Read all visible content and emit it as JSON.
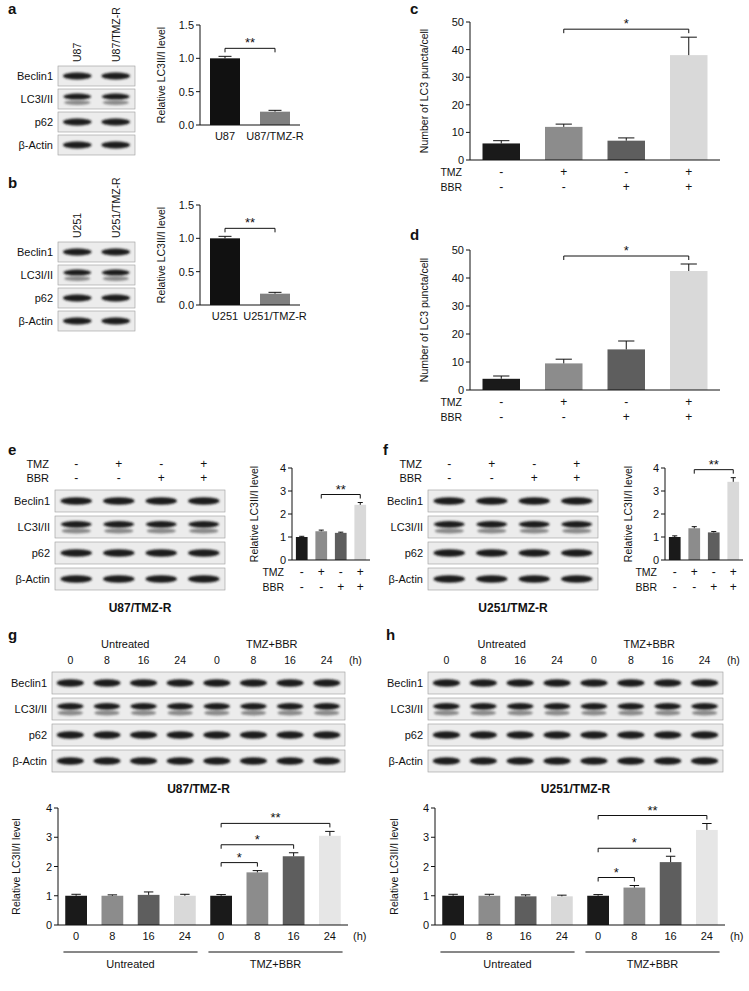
{
  "panel_labels": [
    "a",
    "b",
    "c",
    "d",
    "e",
    "f",
    "g",
    "h"
  ],
  "blots": [
    {
      "lanes": [
        "U87",
        "U87/TMZ-R"
      ],
      "rows": [
        "Beclin1",
        "LC3I/II",
        "p62",
        "β-Actin"
      ]
    },
    {
      "lanes": [
        "U251",
        "U251/TMZ-R"
      ],
      "rows": [
        "Beclin1",
        "LC3I/II",
        "p62",
        "β-Actin"
      ]
    },
    {
      "conditions": [
        {
          "name": "TMZ",
          "values": [
            "-",
            "+",
            "-",
            "+"
          ]
        },
        {
          "name": "BBR",
          "values": [
            "-",
            "-",
            "+",
            "+"
          ]
        }
      ],
      "rows": [
        "Beclin1",
        "LC3I/II",
        "p62",
        "β-Actin"
      ],
      "caption": "U87/TMZ-R"
    },
    {
      "conditions": [
        {
          "name": "TMZ",
          "values": [
            "-",
            "+",
            "-",
            "+"
          ]
        },
        {
          "name": "BBR",
          "values": [
            "-",
            "-",
            "+",
            "+"
          ]
        }
      ],
      "rows": [
        "Beclin1",
        "LC3I/II",
        "p62",
        "β-Actin"
      ],
      "caption": "U251/TMZ-R"
    },
    {
      "groups": [
        {
          "label": "Untreated",
          "times": [
            "0",
            "8",
            "16",
            "24"
          ]
        },
        {
          "label": "TMZ+BBR",
          "times": [
            "0",
            "8",
            "16",
            "24"
          ]
        }
      ],
      "time_unit": "(h)",
      "rows": [
        "Beclin1",
        "LC3I/II",
        "p62",
        "β-Actin"
      ],
      "caption": "U87/TMZ-R"
    },
    {
      "groups": [
        {
          "label": "Untreated",
          "times": [
            "0",
            "8",
            "16",
            "24"
          ]
        },
        {
          "label": "TMZ+BBR",
          "times": [
            "0",
            "8",
            "16",
            "24"
          ]
        }
      ],
      "time_unit": "(h)",
      "rows": [
        "Beclin1",
        "LC3I/II",
        "p62",
        "β-Actin"
      ],
      "caption": "U251/TMZ-R"
    }
  ],
  "chart_data": [
    {
      "type": "bar",
      "y_label": "Relative LC3II/I level",
      "categories": [
        "U87",
        "U87/TMZ-R"
      ],
      "values": [
        1.0,
        0.2
      ],
      "errors": [
        0.03,
        0.02
      ],
      "colors": [
        "#111111",
        "#808080"
      ],
      "ylim": [
        0,
        1.5
      ],
      "yticks": [
        {
          "value": 0,
          "label": "0.0"
        },
        {
          "value": 0.5,
          "label": "0.5"
        },
        {
          "value": 1,
          "label": "1.0"
        },
        {
          "value": 1.5,
          "label": "1.5"
        }
      ],
      "annotations": [
        {
          "text": "**",
          "from": 0,
          "to": 1
        }
      ]
    },
    {
      "type": "bar",
      "y_label": "Relative LC3II/I level",
      "categories": [
        "U251",
        "U251/TMZ-R"
      ],
      "values": [
        1.0,
        0.17
      ],
      "errors": [
        0.03,
        0.02
      ],
      "colors": [
        "#111111",
        "#808080"
      ],
      "ylim": [
        0,
        1.5
      ],
      "yticks": [
        {
          "value": 0,
          "label": "0.0"
        },
        {
          "value": 0.5,
          "label": "0.5"
        },
        {
          "value": 1,
          "label": "1.0"
        },
        {
          "value": 1.5,
          "label": "1.5"
        }
      ],
      "annotations": [
        {
          "text": "**",
          "from": 0,
          "to": 1
        }
      ]
    },
    {
      "type": "bar",
      "y_label": "Number of LC3 puncta/cell",
      "categories": [
        null,
        null,
        null,
        null
      ],
      "conditions": [
        {
          "name": "TMZ",
          "values": [
            "-",
            "+",
            "-",
            "+"
          ]
        },
        {
          "name": "BBR",
          "values": [
            "-",
            "-",
            "+",
            "+"
          ]
        }
      ],
      "values": [
        6,
        12,
        7,
        38
      ],
      "errors": [
        1,
        1,
        1,
        6.5
      ],
      "colors": [
        "#1a1a1a",
        "#8c8c8c",
        "#5e5e5e",
        "#d9d9d9"
      ],
      "ylim": [
        0,
        50
      ],
      "yticks": [
        0,
        10,
        20,
        30,
        40,
        50
      ],
      "annotations": [
        {
          "text": "*",
          "from": 1,
          "to": 3
        }
      ]
    },
    {
      "type": "bar",
      "y_label": "Number of LC3 puncta/cell",
      "categories": [
        null,
        null,
        null,
        null
      ],
      "conditions": [
        {
          "name": "TMZ",
          "values": [
            "-",
            "+",
            "-",
            "+"
          ]
        },
        {
          "name": "BBR",
          "values": [
            "-",
            "-",
            "+",
            "+"
          ]
        }
      ],
      "values": [
        4,
        9.5,
        14.5,
        42.5
      ],
      "errors": [
        1,
        1.5,
        3,
        2.5
      ],
      "colors": [
        "#1a1a1a",
        "#8c8c8c",
        "#5e5e5e",
        "#d9d9d9"
      ],
      "ylim": [
        0,
        50
      ],
      "yticks": [
        0,
        10,
        20,
        30,
        40,
        50
      ],
      "annotations": [
        {
          "text": "*",
          "from": 1,
          "to": 3
        }
      ]
    },
    {
      "type": "bar",
      "y_label": "Relative LC3II/I level",
      "categories": [
        null,
        null,
        null,
        null
      ],
      "conditions": [
        {
          "name": "TMZ",
          "values": [
            "-",
            "+",
            "-",
            "+"
          ]
        },
        {
          "name": "BBR",
          "values": [
            "-",
            "-",
            "+",
            "+"
          ]
        }
      ],
      "values": [
        1.0,
        1.25,
        1.18,
        2.4
      ],
      "errors": [
        0.03,
        0.05,
        0.03,
        0.1
      ],
      "colors": [
        "#1a1a1a",
        "#8c8c8c",
        "#5e5e5e",
        "#d9d9d9"
      ],
      "ylim": [
        0,
        4
      ],
      "yticks": [
        0,
        1,
        2,
        3,
        4
      ],
      "annotations": [
        {
          "text": "**",
          "from": 1,
          "to": 3
        }
      ]
    },
    {
      "type": "bar",
      "y_label": "Relative LC3II/I level",
      "categories": [
        null,
        null,
        null,
        null
      ],
      "conditions": [
        {
          "name": "TMZ",
          "values": [
            "-",
            "+",
            "-",
            "+"
          ]
        },
        {
          "name": "BBR",
          "values": [
            "-",
            "-",
            "+",
            "+"
          ]
        }
      ],
      "values": [
        1.0,
        1.38,
        1.2,
        3.4
      ],
      "errors": [
        0.05,
        0.07,
        0.04,
        0.18
      ],
      "colors": [
        "#1a1a1a",
        "#8c8c8c",
        "#5e5e5e",
        "#d9d9d9"
      ],
      "ylim": [
        0,
        4
      ],
      "yticks": [
        0,
        1,
        2,
        3,
        4
      ],
      "annotations": [
        {
          "text": "**",
          "from": 1,
          "to": 3
        }
      ]
    },
    {
      "type": "bar",
      "y_label": "Relative LC3II/I level",
      "x_label": "(h)",
      "categories": [
        "0",
        "8",
        "16",
        "24",
        "0",
        "8",
        "16",
        "24"
      ],
      "groups": [
        {
          "label": "Untreated",
          "from": 0,
          "to": 3
        },
        {
          "label": "TMZ+BBR",
          "from": 4,
          "to": 7
        }
      ],
      "values": [
        1.0,
        1.0,
        1.03,
        1.0,
        1.0,
        1.8,
        2.35,
        3.05
      ],
      "errors": [
        0.05,
        0.03,
        0.1,
        0.05,
        0.04,
        0.06,
        0.12,
        0.15
      ],
      "colors": [
        "#1a1a1a",
        "#8c8c8c",
        "#5e5e5e",
        "#d9d9d9",
        "#1a1a1a",
        "#8c8c8c",
        "#5e5e5e",
        "#e6e6e6"
      ],
      "ylim": [
        0,
        4
      ],
      "yticks": [
        0,
        1,
        2,
        3,
        4
      ],
      "annotations": [
        {
          "text": "*",
          "from": 4,
          "to": 5
        },
        {
          "text": "*",
          "from": 4,
          "to": 6
        },
        {
          "text": "**",
          "from": 4,
          "to": 7
        }
      ]
    },
    {
      "type": "bar",
      "y_label": "Relative LC3II/I level",
      "x_label": "(h)",
      "categories": [
        "0",
        "8",
        "16",
        "24",
        "0",
        "8",
        "16",
        "24"
      ],
      "groups": [
        {
          "label": "Untreated",
          "from": 0,
          "to": 3
        },
        {
          "label": "TMZ+BBR",
          "from": 4,
          "to": 7
        }
      ],
      "values": [
        1.0,
        1.0,
        0.98,
        0.98,
        1.0,
        1.28,
        2.15,
        3.25
      ],
      "errors": [
        0.05,
        0.05,
        0.05,
        0.04,
        0.04,
        0.07,
        0.2,
        0.22
      ],
      "colors": [
        "#1a1a1a",
        "#8c8c8c",
        "#5e5e5e",
        "#d9d9d9",
        "#1a1a1a",
        "#8c8c8c",
        "#5e5e5e",
        "#e6e6e6"
      ],
      "ylim": [
        0,
        4
      ],
      "yticks": [
        0,
        1,
        2,
        3,
        4
      ],
      "annotations": [
        {
          "text": "*",
          "from": 4,
          "to": 5
        },
        {
          "text": "*",
          "from": 4,
          "to": 6
        },
        {
          "text": "**",
          "from": 4,
          "to": 7
        }
      ]
    }
  ]
}
